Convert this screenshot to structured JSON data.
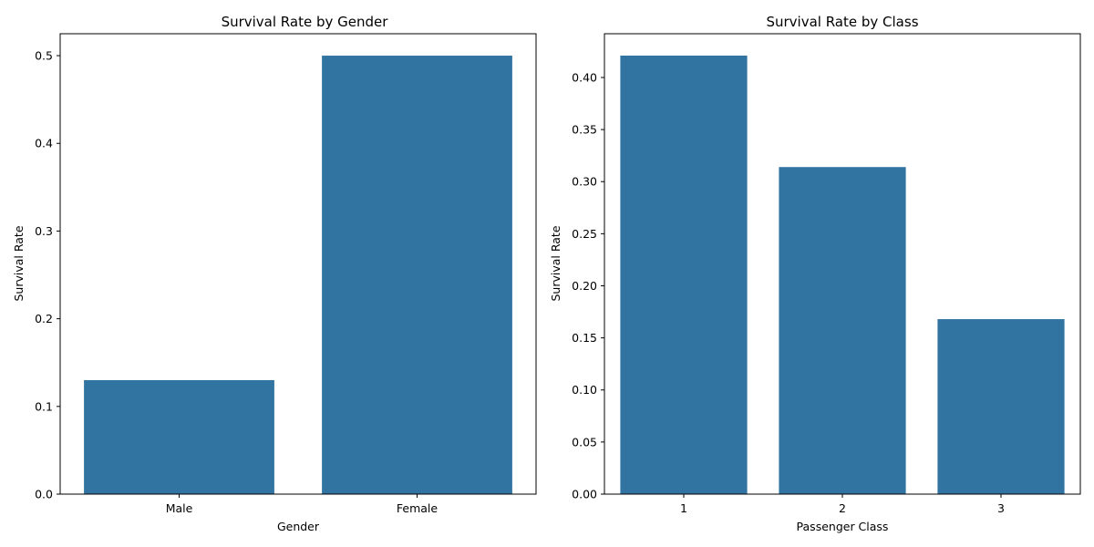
{
  "chart_data": [
    {
      "type": "bar",
      "title": "Survival Rate by Gender",
      "xlabel": "Gender",
      "ylabel": "Survival Rate",
      "categories": [
        "Male",
        "Female"
      ],
      "values": [
        0.13,
        0.5
      ],
      "ylim": [
        0,
        0.525
      ],
      "yticks": [
        0.0,
        0.1,
        0.2,
        0.3,
        0.4,
        0.5
      ],
      "ytick_labels": [
        "0.0",
        "0.1",
        "0.2",
        "0.3",
        "0.4",
        "0.5"
      ],
      "grid": false,
      "color": "#3274a1"
    },
    {
      "type": "bar",
      "title": "Survival Rate by Class",
      "xlabel": "Passenger Class",
      "ylabel": "Survival Rate",
      "categories": [
        "1",
        "2",
        "3"
      ],
      "values": [
        0.421,
        0.314,
        0.168
      ],
      "ylim": [
        0,
        0.442
      ],
      "yticks": [
        0.0,
        0.05,
        0.1,
        0.15,
        0.2,
        0.25,
        0.3,
        0.35,
        0.4
      ],
      "ytick_labels": [
        "0.00",
        "0.05",
        "0.10",
        "0.15",
        "0.20",
        "0.25",
        "0.30",
        "0.35",
        "0.40"
      ],
      "grid": false,
      "color": "#3274a1"
    }
  ]
}
